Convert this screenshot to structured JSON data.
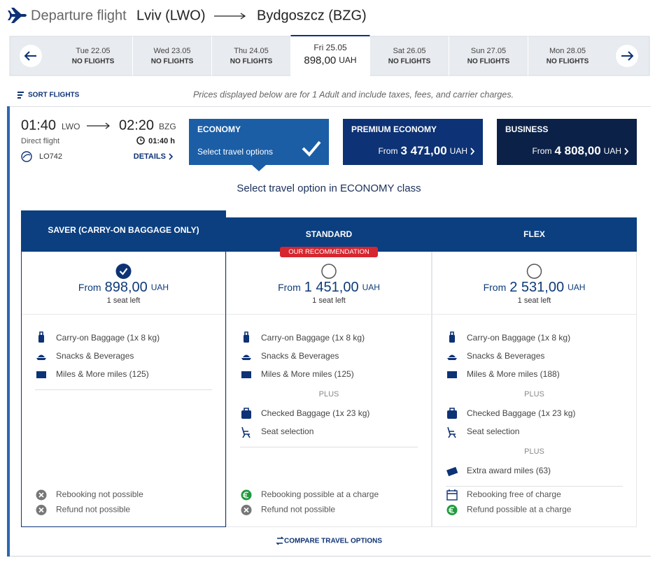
{
  "header": {
    "label": "Departure flight",
    "origin": "Lviv (LWO)",
    "destination": "Bydgoszcz (BZG)"
  },
  "dates": [
    {
      "date": "Tue 22.05",
      "status": "NO FLIGHTS"
    },
    {
      "date": "Wed 23.05",
      "status": "NO FLIGHTS"
    },
    {
      "date": "Thu 24.05",
      "status": "NO FLIGHTS"
    },
    {
      "date": "Fri 25.05",
      "price": "898,00",
      "selected": true
    },
    {
      "date": "Sat 26.05",
      "status": "NO FLIGHTS"
    },
    {
      "date": "Sun 27.05",
      "status": "NO FLIGHTS"
    },
    {
      "date": "Mon 28.05",
      "status": "NO FLIGHTS"
    }
  ],
  "currency": "UAH",
  "from_label": "From",
  "sort_label": "SORT FLIGHTS",
  "price_note": "Prices displayed below are for 1 Adult and include taxes, fees, and carrier charges.",
  "flight": {
    "dep_time": "01:40",
    "dep_code": "LWO",
    "arr_time": "02:20",
    "arr_code": "BZG",
    "type": "Direct flight",
    "duration": "01:40 h",
    "number": "LO742",
    "details": "DETAILS"
  },
  "cabins": [
    {
      "name": "ECONOMY",
      "note": "Select travel options",
      "color": "#1b5ea6",
      "selected": true
    },
    {
      "name": "PREMIUM ECONOMY",
      "price": "3 471,00",
      "color": "#0d3275"
    },
    {
      "name": "BUSINESS",
      "price": "4 808,00",
      "color": "#0b2148"
    }
  ],
  "section_title": "Select travel option in ECONOMY class",
  "plus_label": "PLUS",
  "recommendation": "OUR RECOMMENDATION",
  "fares": [
    {
      "name": "SAVER (CARRY-ON BAGGAGE ONLY)",
      "price": "898,00",
      "seats": "1 seat left",
      "selected": true,
      "groups": [
        [
          "Carry-on Baggage (1x 8 kg)",
          "Snacks & Beverages",
          "Miles & More miles (125)"
        ]
      ],
      "conditions": [
        {
          "icon": "cross",
          "text": "Rebooking not possible"
        },
        {
          "icon": "cross",
          "text": "Refund not possible"
        }
      ]
    },
    {
      "name": "STANDARD",
      "price": "1 451,00",
      "seats": "1 seat left",
      "recommended": true,
      "groups": [
        [
          "Carry-on Baggage (1x 8 kg)",
          "Snacks & Beverages",
          "Miles & More miles (125)"
        ],
        [
          "Checked Baggage (1x 23 kg)",
          "Seat selection"
        ]
      ],
      "conditions": [
        {
          "icon": "euro",
          "text": "Rebooking possible at a charge"
        },
        {
          "icon": "cross",
          "text": "Refund not possible"
        }
      ]
    },
    {
      "name": "FLEX",
      "price": "2 531,00",
      "seats": "1 seat left",
      "groups": [
        [
          "Carry-on Baggage (1x 8 kg)",
          "Snacks & Beverages",
          "Miles & More miles (188)"
        ],
        [
          "Checked Baggage (1x 23 kg)",
          "Seat selection"
        ],
        [
          "Extra award miles (63)"
        ]
      ],
      "conditions": [
        {
          "icon": "calendar",
          "text": "Rebooking free of charge"
        },
        {
          "icon": "euro",
          "text": "Refund possible at a charge"
        }
      ]
    }
  ],
  "compare": "COMPARE TRAVEL OPTIONS"
}
